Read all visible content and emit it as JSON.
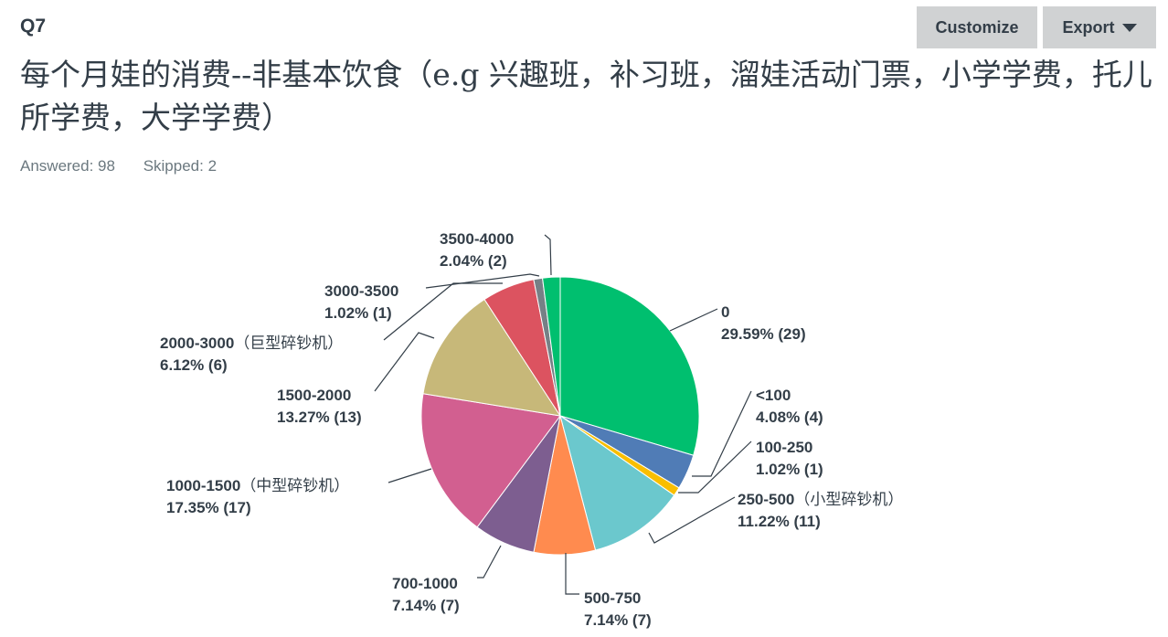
{
  "question": {
    "number": "Q7",
    "title": "每个月娃的消费--非基本饮食（e.g 兴趣班，补习班，溜娃活动门票，小学学费，托儿所学费，大学学费）",
    "answered_label": "Answered: 98",
    "skipped_label": "Skipped: 2"
  },
  "toolbar": {
    "customize_label": "Customize",
    "export_label": "Export"
  },
  "chart_data": {
    "type": "pie",
    "series": [
      {
        "label": "0",
        "label_suffix": "",
        "percent_label": "29.59% (29)",
        "percent": 29.59,
        "count": 29,
        "color": "#00bf6f"
      },
      {
        "label": "<100",
        "label_suffix": "",
        "percent_label": "4.08% (4)",
        "percent": 4.08,
        "count": 4,
        "color": "#507cb6"
      },
      {
        "label": "100-250",
        "label_suffix": "",
        "percent_label": "1.02% (1)",
        "percent": 1.02,
        "count": 1,
        "color": "#f9be00"
      },
      {
        "label": "250-500",
        "label_suffix": "（小型碎钞机）",
        "percent_label": "11.22% (11)",
        "percent": 11.22,
        "count": 11,
        "color": "#6bc8cd"
      },
      {
        "label": "500-750",
        "label_suffix": "",
        "percent_label": "7.14% (7)",
        "percent": 7.14,
        "count": 7,
        "color": "#ff8b4f"
      },
      {
        "label": "700-1000",
        "label_suffix": "",
        "percent_label": "7.14% (7)",
        "percent": 7.14,
        "count": 7,
        "color": "#7d5e90"
      },
      {
        "label": "1000-1500",
        "label_suffix": "（中型碎钞机）",
        "percent_label": "17.35% (17)",
        "percent": 17.35,
        "count": 17,
        "color": "#d25f90"
      },
      {
        "label": "1500-2000",
        "label_suffix": "",
        "percent_label": "13.27% (13)",
        "percent": 13.27,
        "count": 13,
        "color": "#c7b879"
      },
      {
        "label": "2000-3000",
        "label_suffix": "（巨型碎钞机）",
        "percent_label": "6.12% (6)",
        "percent": 6.12,
        "count": 6,
        "color": "#dc5360"
      },
      {
        "label": "3000-3500",
        "label_suffix": "",
        "percent_label": "1.02% (1)",
        "percent": 1.02,
        "count": 1,
        "color": "#768086"
      },
      {
        "label": "3500-4000",
        "label_suffix": "",
        "percent_label": "2.04% (2)",
        "percent": 2.04,
        "count": 2,
        "color": "#00bf6f"
      }
    ]
  }
}
